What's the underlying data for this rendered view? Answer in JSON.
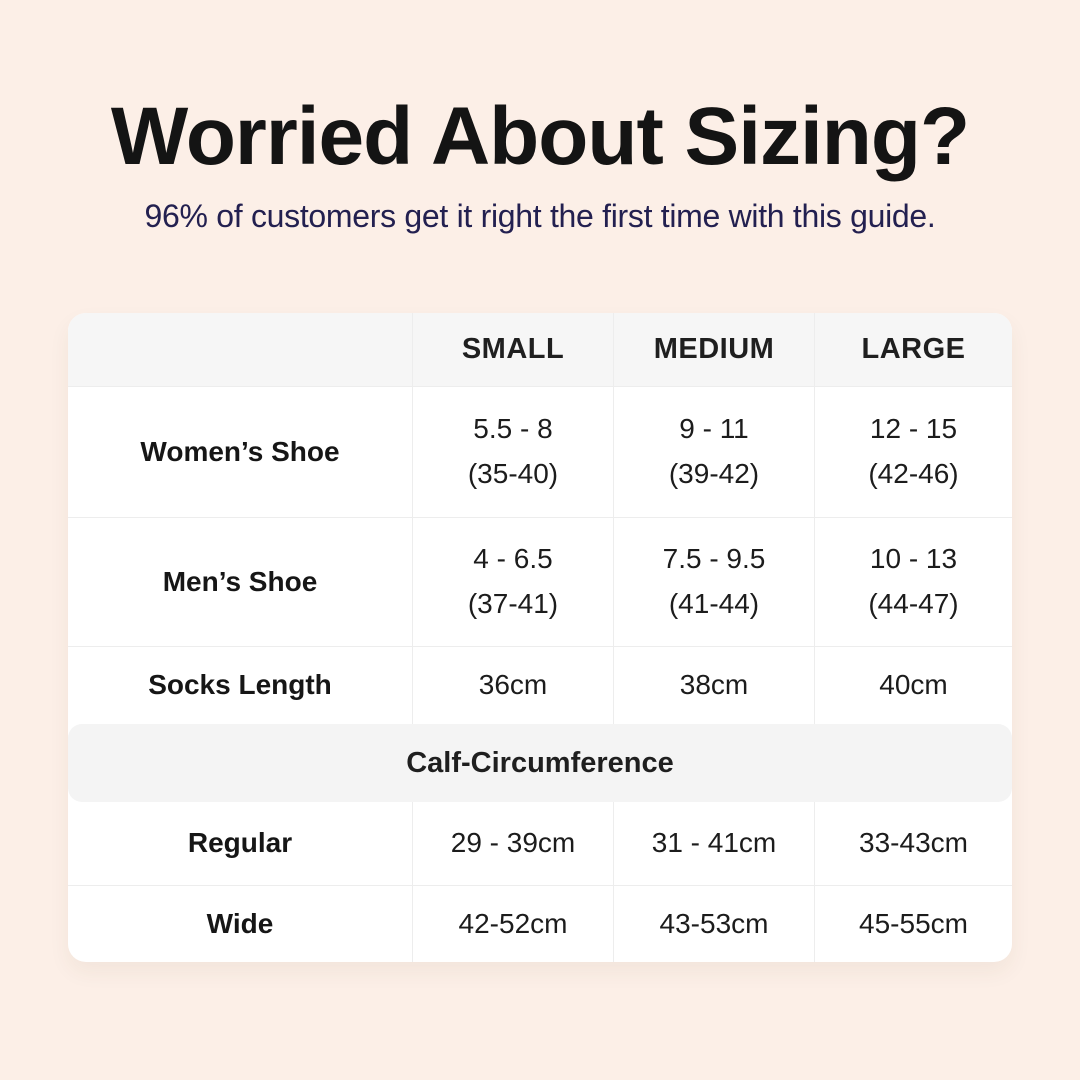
{
  "header": {
    "title": "Worried About Sizing?",
    "subtitle": "96% of customers get it right the first time with this guide."
  },
  "table": {
    "columns": [
      "SMALL",
      "MEDIUM",
      "LARGE"
    ],
    "rows": [
      {
        "label": "Women’s Shoe",
        "cells": [
          [
            "5.5 - 8",
            "(35-40)"
          ],
          [
            "9 - 11",
            "(39-42)"
          ],
          [
            "12 - 15",
            "(42-46)"
          ]
        ]
      },
      {
        "label": "Men’s Shoe",
        "cells": [
          [
            "4 - 6.5",
            "(37-41)"
          ],
          [
            "7.5 - 9.5",
            "(41-44)"
          ],
          [
            "10 - 13",
            "(44-47)"
          ]
        ]
      },
      {
        "label": "Socks Length",
        "cells": [
          [
            "36cm"
          ],
          [
            "38cm"
          ],
          [
            "40cm"
          ]
        ]
      }
    ],
    "section": {
      "header": "Calf-Circumference",
      "rows": [
        {
          "label": "Regular",
          "cells": [
            [
              "29 - 39cm"
            ],
            [
              "31 - 41cm"
            ],
            [
              "33-43cm"
            ]
          ]
        },
        {
          "label": "Wide",
          "cells": [
            [
              "42-52cm"
            ],
            [
              "43-53cm"
            ],
            [
              "45-55cm"
            ]
          ]
        }
      ]
    }
  },
  "colors": {
    "background": "#fcefe7",
    "table_background": "#ffffff",
    "header_row_background": "#f6f6f6",
    "section_band_background": "#f4f4f4",
    "border": "#ededed",
    "title_text": "#141414",
    "subtitle_text": "#232050",
    "body_text": "#1c1c1c"
  }
}
